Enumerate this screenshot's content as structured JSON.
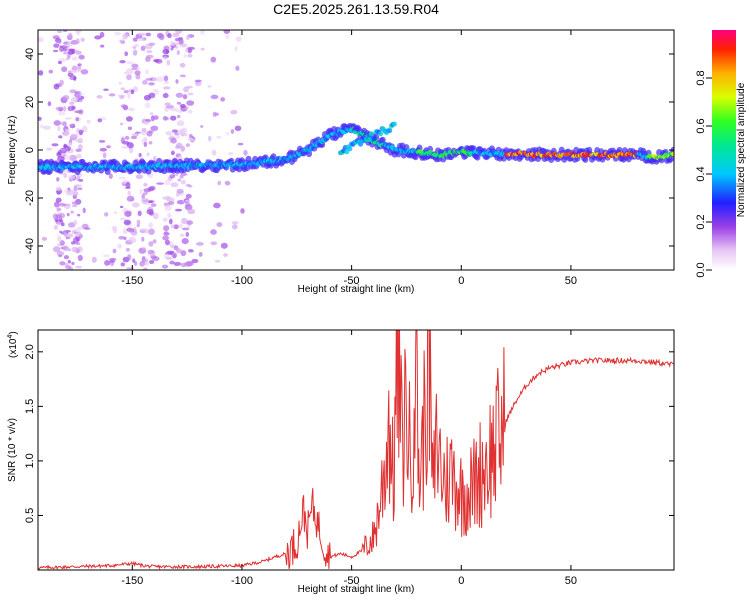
{
  "title": "C2E5.2025.261.13.59.R04",
  "chart_data": [
    {
      "type": "heatmap",
      "name": "spectrogram",
      "xlabel": "Height of straight line (km)",
      "ylabel": "Frequency (Hz)",
      "xlim": [
        -193,
        97
      ],
      "ylim": [
        -50,
        50
      ],
      "xticks": [
        -150,
        -100,
        -50,
        0,
        50
      ],
      "yticks": [
        -40,
        -20,
        0,
        20,
        40
      ],
      "colorbar": {
        "label": "Normalized spectral amplitude",
        "range": [
          0,
          1
        ],
        "ticks": [
          "0.0",
          "0.2",
          "0.4",
          "0.6",
          "0.8"
        ],
        "tick_values": [
          0.0,
          0.2,
          0.4,
          0.6,
          0.8
        ]
      },
      "ridge": {
        "x": [
          -193,
          -150,
          -100,
          -90,
          -80,
          -70,
          -60,
          -50,
          -40,
          -30,
          -20,
          -10,
          0,
          20,
          40,
          60,
          80,
          90,
          97
        ],
        "frequency": [
          -7,
          -7,
          -6,
          -5,
          -4,
          0,
          6,
          9,
          4,
          0,
          -1,
          -2,
          -1,
          -1.5,
          -2,
          -2,
          -2,
          -3,
          -2
        ]
      }
    },
    {
      "type": "line",
      "name": "snr",
      "xlabel": "Height of straight line (km)",
      "ylabel": "SNR (10 * v/v)",
      "scale_label": "(x10",
      "scale_exp": "4",
      "scale_close": ")",
      "xlim": [
        -193,
        97
      ],
      "ylim": [
        0,
        2.2
      ],
      "xticks": [
        -150,
        -100,
        -50,
        0,
        50
      ],
      "yticks": [
        0.5,
        1.0,
        1.5,
        2.0
      ],
      "ytick_labels": [
        "0.5",
        "1.0",
        "1.5",
        "2.0"
      ],
      "series": [
        {
          "name": "SNR",
          "color": "#e03030",
          "x": [
            -193,
            -160,
            -150,
            -145,
            -140,
            -120,
            -100,
            -95,
            -90,
            -85,
            -80,
            -75,
            -72,
            -70,
            -68,
            -65,
            -62,
            -60,
            -55,
            -50,
            -45,
            -40,
            -38,
            -35,
            -33,
            -31,
            -29,
            -27,
            -25,
            -23,
            -21,
            -19,
            -17,
            -15,
            -13,
            -11,
            -9,
            -7,
            -5,
            -3,
            0,
            5,
            10,
            15,
            20,
            25,
            30,
            35,
            40,
            50,
            60,
            70,
            80,
            90,
            97
          ],
          "y": [
            0.02,
            0.04,
            0.06,
            0.04,
            0.03,
            0.03,
            0.04,
            0.06,
            0.08,
            0.12,
            0.15,
            0.25,
            0.55,
            0.35,
            0.6,
            0.4,
            0.2,
            0.12,
            0.15,
            0.12,
            0.18,
            0.3,
            0.5,
            0.9,
            1.4,
            0.8,
            2.0,
            1.1,
            1.6,
            0.9,
            2.1,
            0.8,
            1.3,
            2.2,
            0.7,
            1.2,
            0.9,
            0.8,
            0.9,
            0.85,
            0.7,
            0.75,
            0.95,
            1.1,
            1.35,
            1.55,
            1.7,
            1.8,
            1.85,
            1.9,
            1.92,
            1.92,
            1.92,
            1.9,
            1.88
          ]
        }
      ]
    }
  ]
}
